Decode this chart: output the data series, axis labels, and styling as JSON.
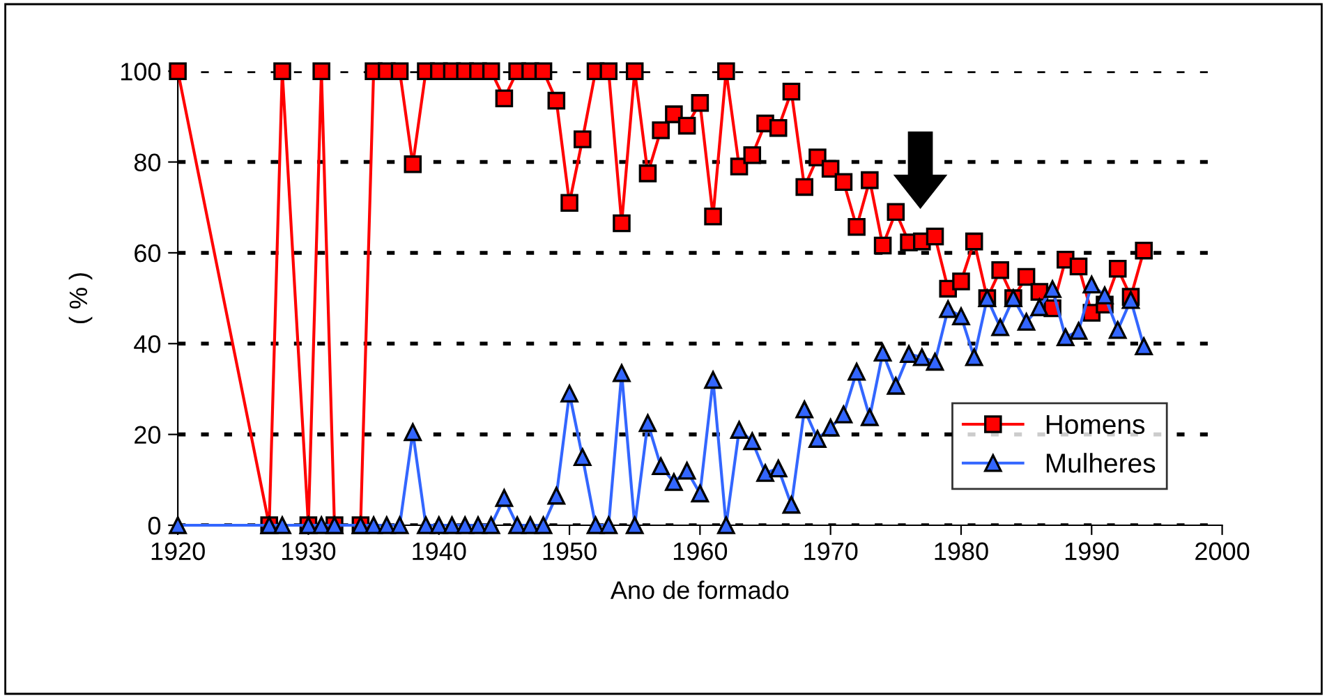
{
  "chart_data": {
    "type": "line",
    "xlabel": "Ano de formado",
    "ylabel": "( % )",
    "x": [
      1920,
      1927,
      1928,
      1930,
      1931,
      1932,
      1934,
      1935,
      1936,
      1937,
      1938,
      1939,
      1940,
      1941,
      1942,
      1943,
      1944,
      1945,
      1946,
      1947,
      1948,
      1949,
      1950,
      1951,
      1952,
      1953,
      1954,
      1955,
      1956,
      1957,
      1958,
      1959,
      1960,
      1961,
      1962,
      1963,
      1964,
      1965,
      1966,
      1967,
      1968,
      1969,
      1970,
      1971,
      1972,
      1973,
      1974,
      1975,
      1976,
      1977,
      1978,
      1979,
      1980,
      1981,
      1982,
      1983,
      1984,
      1985,
      1986,
      1987,
      1988,
      1989,
      1990,
      1991,
      1992,
      1993,
      1994
    ],
    "series": [
      {
        "name": "Homens",
        "color": "#ff0000",
        "marker": "square",
        "values": [
          100,
          0,
          100,
          0,
          100,
          0,
          0,
          100,
          100,
          100,
          79.5,
          100,
          100,
          100,
          100,
          100,
          100,
          94,
          100,
          100,
          100,
          93.5,
          71,
          85,
          100,
          100,
          66.5,
          100,
          77.5,
          87,
          90.5,
          88,
          93,
          68,
          100,
          79,
          81.5,
          88.5,
          87.5,
          95.5,
          74.5,
          81,
          78.5,
          75.6,
          65.7,
          76,
          61.6,
          69,
          62.3,
          62.5,
          63.6,
          52.1,
          53.7,
          62.5,
          50,
          56.2,
          50,
          54.7,
          51.4,
          47.8,
          58.5,
          57,
          46.8,
          48.6,
          56.5,
          50.3,
          60.5
        ]
      },
      {
        "name": "Mulheres",
        "color": "#3366ff",
        "marker": "triangle",
        "values": [
          0,
          0,
          0,
          0,
          0,
          0,
          0,
          0,
          0,
          0,
          20.5,
          0,
          0,
          0,
          0,
          0,
          0,
          6,
          0,
          0,
          0,
          6.5,
          29,
          15,
          0,
          0,
          33.5,
          0,
          22.5,
          13,
          9.5,
          12,
          7,
          32,
          0,
          21,
          18.5,
          11.5,
          12.5,
          4.5,
          25.5,
          19,
          21.5,
          24.4,
          33.8,
          23.8,
          38,
          30.7,
          37.7,
          37,
          36,
          47.6,
          46,
          37,
          50,
          43.6,
          50,
          44.8,
          48,
          52,
          41.4,
          42.8,
          53,
          50.6,
          43,
          49.6,
          39.4
        ]
      }
    ],
    "xlim": [
      1920,
      2000
    ],
    "xticks": [
      1920,
      1930,
      1940,
      1950,
      1960,
      1970,
      1980,
      1990,
      2000
    ],
    "ylim": [
      0,
      100
    ],
    "yticks": [
      0,
      20,
      40,
      60,
      80,
      100
    ],
    "grid": "y",
    "line_style": "solid",
    "legend": "bottom right"
  }
}
